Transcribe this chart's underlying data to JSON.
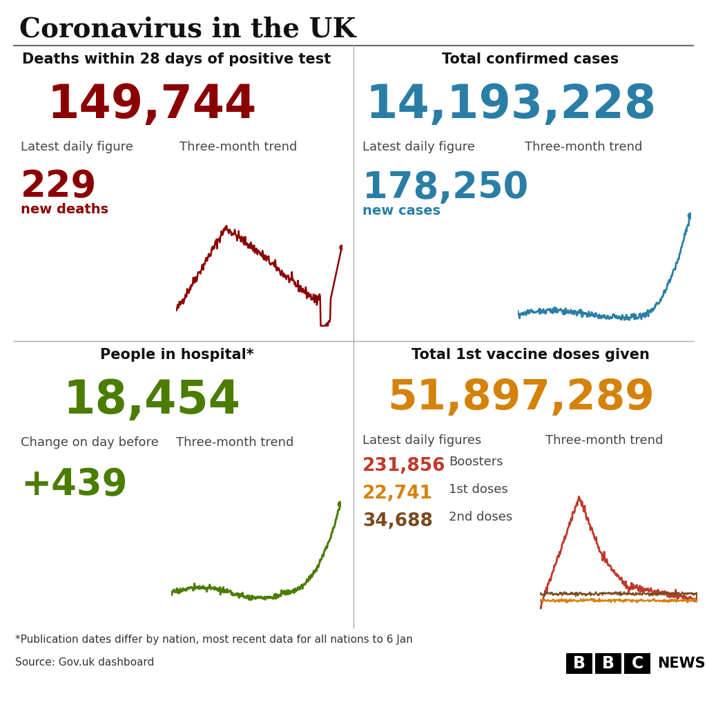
{
  "title": "Coronavirus in the UK",
  "background_color": "#ffffff",
  "title_color": "#111111",
  "panel_tl": {
    "header": "Deaths within 28 days of positive test",
    "big_number": "149,744",
    "big_number_color": "#8b0000",
    "label_left": "Latest daily figure",
    "daily_value": "229",
    "daily_label": "new deaths",
    "daily_color": "#8b0000",
    "trend_label": "Three-month trend",
    "trend_color": "#8b0000"
  },
  "panel_tr": {
    "header": "Total confirmed cases",
    "big_number": "14,193,228",
    "big_number_color": "#2a7ea6",
    "label_left": "Latest daily figure",
    "daily_value": "178,250",
    "daily_label": "new cases",
    "daily_color": "#2a7ea6",
    "trend_label": "Three-month trend",
    "trend_color": "#2a7ea6"
  },
  "panel_bl": {
    "header": "People in hospital*",
    "big_number": "18,454",
    "big_number_color": "#4a7c00",
    "label_left": "Change on day before",
    "daily_value": "+439",
    "daily_label": "",
    "daily_color": "#4a7c00",
    "trend_label": "Three-month trend",
    "trend_color": "#4a7c00"
  },
  "panel_br": {
    "header": "Total 1st vaccine doses given",
    "big_number": "51,897,289",
    "big_number_color": "#d4820a",
    "label_left": "Latest daily figures",
    "items": [
      {
        "value": "231,856",
        "label": "Boosters",
        "color": "#c0392b"
      },
      {
        "value": "22,741",
        "label": "1st doses",
        "color": "#d4820a"
      },
      {
        "value": "34,688",
        "label": "2nd doses",
        "color": "#7a4a1e"
      }
    ],
    "trend_label": "Three-month trend",
    "trend_color_booster": "#c0392b",
    "trend_color_1st": "#d4820a",
    "trend_color_2nd": "#7a4a1e"
  },
  "footnote": "*Publication dates differ by nation, most recent data for all nations to 6 Jan",
  "source": "Source: Gov.uk dashboard",
  "footnote_color": "#333333"
}
